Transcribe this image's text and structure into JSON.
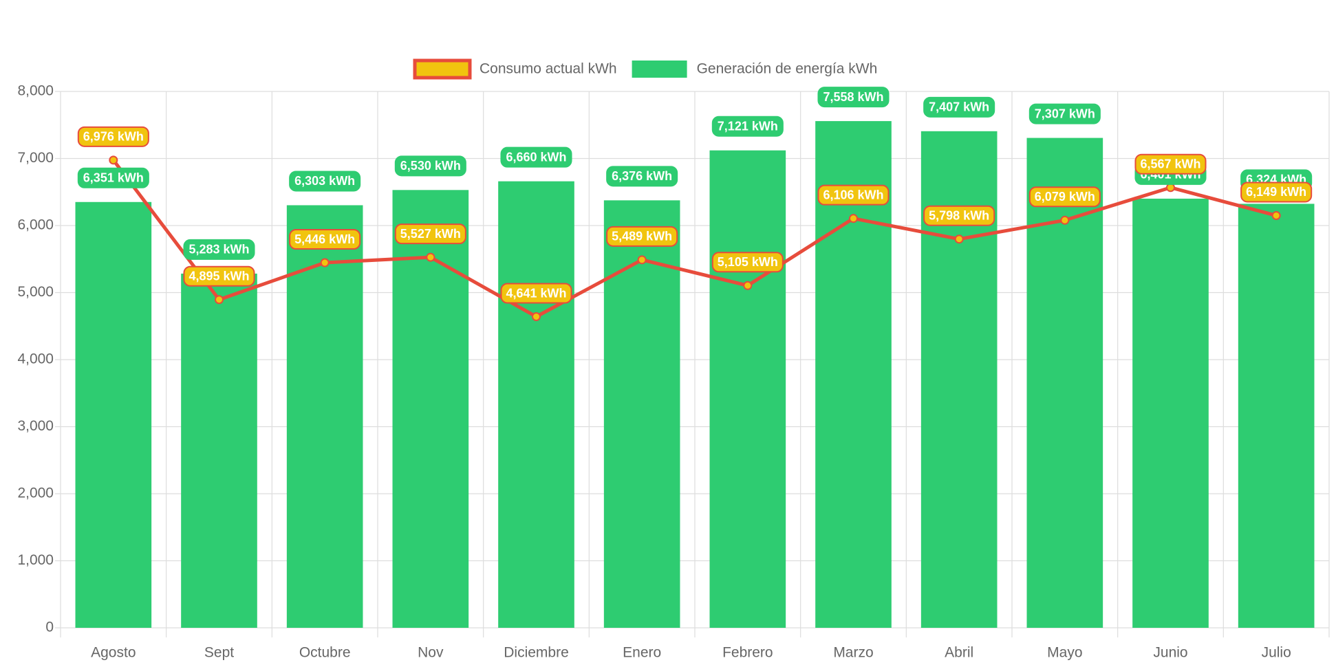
{
  "chart_data": {
    "type": "bar",
    "categories": [
      "Agosto",
      "Sept",
      "Octubre",
      "Nov",
      "Diciembre",
      "Enero",
      "Febrero",
      "Marzo",
      "Abril",
      "Mayo",
      "Junio",
      "Julio"
    ],
    "series": [
      {
        "name": "Consumo actual kWh",
        "type": "line",
        "color": "#e74c3c",
        "fill": "#f1c40f",
        "values": [
          6976,
          4895,
          5446,
          5527,
          4641,
          5489,
          5105,
          6106,
          5798,
          6079,
          6567,
          6149
        ],
        "value_labels": [
          "6,976 kWh",
          "4,895 kWh",
          "5,446 kWh",
          "5,527 kWh",
          "4,641 kWh",
          "5,489 kWh",
          "5,105 kWh",
          "6,106 kWh",
          "5,798 kWh",
          "6,079 kWh",
          "6,567 kWh",
          "6,149 kWh"
        ]
      },
      {
        "name": "Generación de energía kWh",
        "type": "bar",
        "color": "#2ecc71",
        "fill": "#2ecc71",
        "values": [
          6351,
          5283,
          6303,
          6530,
          6660,
          6376,
          7121,
          7558,
          7407,
          7307,
          6401,
          6324
        ],
        "value_labels": [
          "6,351 kWh",
          "5,283 kWh",
          "6,303 kWh",
          "6,530 kWh",
          "6,660 kWh",
          "6,376 kWh",
          "7,121 kWh",
          "7,558 kWh",
          "7,407 kWh",
          "7,307 kWh",
          "6,401 kWh",
          "6,324 kWh"
        ]
      }
    ],
    "ylim": [
      0,
      8000
    ],
    "yticks": [
      0,
      {
        "value": 1000,
        "label": "1,000"
      },
      {
        "value": 2000,
        "label": "2,000"
      },
      {
        "value": 3000,
        "label": "3,000"
      },
      {
        "value": 4000,
        "label": "4,000"
      },
      {
        "value": 5000,
        "label": "5,000"
      },
      {
        "value": 6000,
        "label": "6,000"
      },
      {
        "value": 7000,
        "label": "7,000"
      },
      {
        "value": 8000,
        "label": "8,000"
      }
    ],
    "grid": true,
    "legend": "top"
  }
}
